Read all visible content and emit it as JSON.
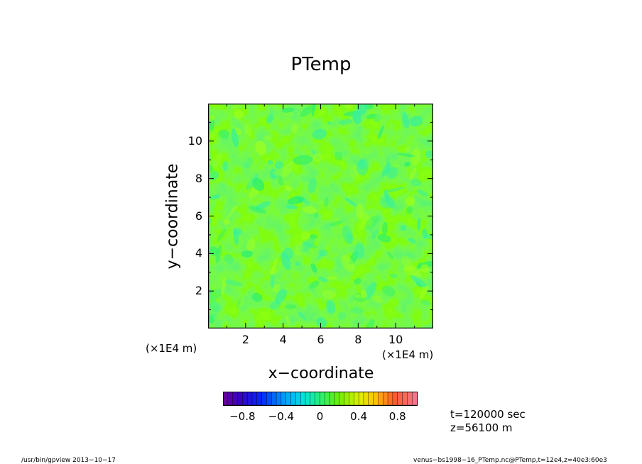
{
  "chart_data": {
    "type": "heatmap",
    "title": "PTemp",
    "xlabel": "x−coordinate",
    "ylabel": "y−coordinate",
    "x_scale_label": "(×1E4 m)",
    "y_scale_label": "(×1E4 m)",
    "xlim": [
      0,
      12
    ],
    "ylim": [
      0,
      12
    ],
    "x_ticks": [
      2,
      4,
      6,
      8,
      10
    ],
    "y_ticks": [
      2,
      4,
      6,
      8,
      10
    ],
    "x_tick_labels": [
      "2",
      "4",
      "6",
      "8",
      "10"
    ],
    "y_tick_labels": [
      "2",
      "4",
      "6",
      "8",
      "10"
    ],
    "field_range_estimate": [
      -0.3,
      0.25
    ],
    "colorbar": {
      "range": [
        -1.0,
        1.0
      ],
      "levels": 40,
      "ticks": [
        -0.8,
        -0.4,
        0,
        0.4,
        0.8
      ],
      "tick_labels": [
        "−0.8",
        "−0.4",
        "0",
        "0.4",
        "0.8"
      ]
    },
    "annotations": {
      "time": "t=120000 sec",
      "height": "z=56100 m"
    },
    "grid": false
  },
  "footer": {
    "left": "/usr/bin/gpview   2013−10−17",
    "right": "venus−bs1998−16_PTemp.nc@PTemp,t=12e4,z=40e3:60e3"
  },
  "colors": {
    "field_base": "#4cff26",
    "cool_patch": "#35f0a0",
    "warm_patch": "#9cff20",
    "frame": "#000000"
  }
}
